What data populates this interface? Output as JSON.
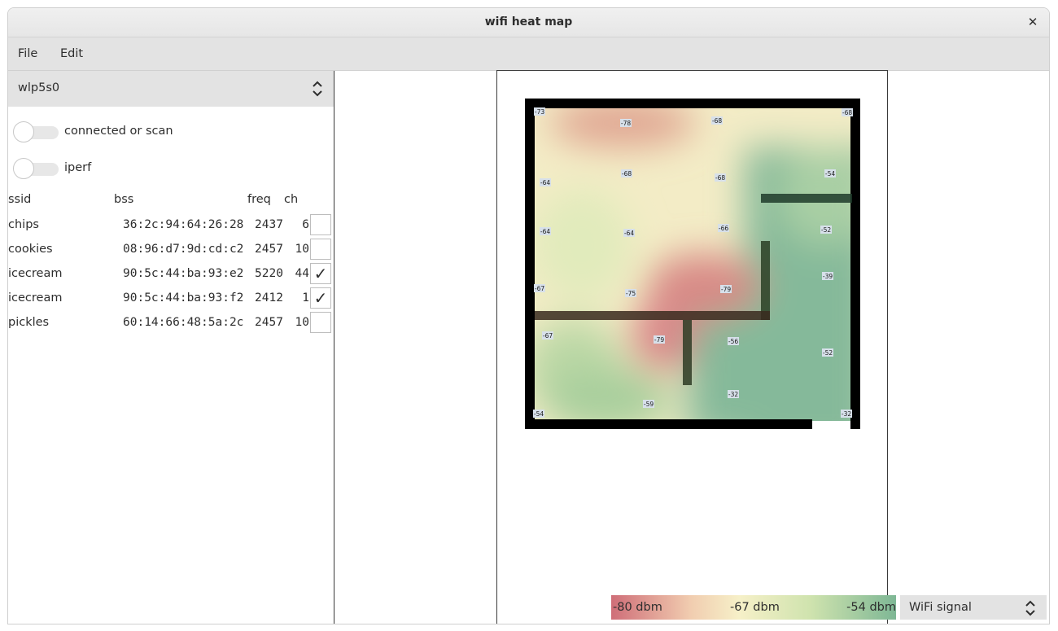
{
  "window": {
    "title": "wifi heat map"
  },
  "menu": {
    "file": "File",
    "edit": "Edit"
  },
  "interface": {
    "selected": "wlp5s0"
  },
  "toggles": {
    "connected": {
      "label": "connected or scan",
      "on": false
    },
    "iperf": {
      "label": "iperf",
      "on": false
    }
  },
  "table": {
    "headers": {
      "ssid": "ssid",
      "bss": "bss",
      "freq": "freq",
      "ch": "ch"
    },
    "rows": [
      {
        "ssid": "chips",
        "bss": "36:2c:94:64:26:28",
        "freq": "2437",
        "ch": "6",
        "checked": false
      },
      {
        "ssid": "cookies",
        "bss": "08:96:d7:9d:cd:c2",
        "freq": "2457",
        "ch": "10",
        "checked": false
      },
      {
        "ssid": "icecream",
        "bss": "90:5c:44:ba:93:e2",
        "freq": "5220",
        "ch": "44",
        "checked": true,
        "mark": "✓"
      },
      {
        "ssid": "icecream",
        "bss": "90:5c:44:ba:93:f2",
        "freq": "2412",
        "ch": "1",
        "checked": true,
        "mark": "✓"
      },
      {
        "ssid": "pickles",
        "bss": "60:14:66:48:5a:2c",
        "freq": "2457",
        "ch": "10",
        "checked": false
      }
    ]
  },
  "heatmap": {
    "readings": [
      "-73",
      "-78",
      "-68",
      "-68",
      "-64",
      "-68",
      "-68",
      "-54",
      "-64",
      "-64",
      "-66",
      "-52",
      "-67",
      "-75",
      "-79",
      "-39",
      "-67",
      "-79",
      "-56",
      "-52",
      "-32",
      "-59",
      "-54",
      "-32"
    ]
  },
  "legend": {
    "low": "-80 dbm",
    "mid": "-67 dbm",
    "high": "-54 dbm"
  },
  "signal_select": {
    "selected": "WiFi signal"
  },
  "colors": {
    "weak": "#cf6e78",
    "medium": "#f6f0c8",
    "strong": "#7eb795"
  }
}
